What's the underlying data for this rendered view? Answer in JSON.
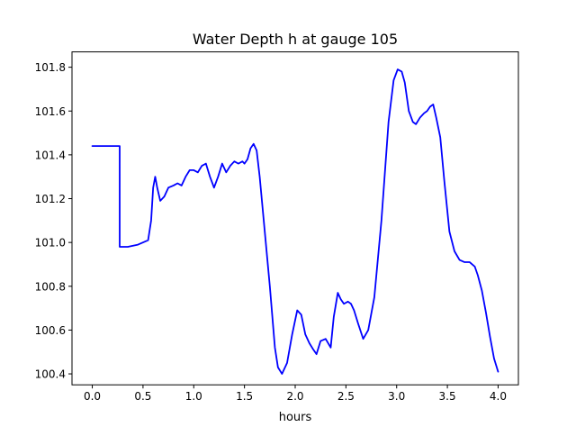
{
  "chart_data": {
    "type": "line",
    "title": "Water Depth h at gauge 105",
    "xlabel": "hours",
    "ylabel": "",
    "xlim": [
      -0.2,
      4.2
    ],
    "ylim": [
      100.35,
      101.87
    ],
    "xticks": [
      0.0,
      0.5,
      1.0,
      1.5,
      2.0,
      2.5,
      3.0,
      3.5,
      4.0
    ],
    "xtick_labels": [
      "0.0",
      "0.5",
      "1.0",
      "1.5",
      "2.0",
      "2.5",
      "3.0",
      "3.5",
      "4.0"
    ],
    "yticks": [
      100.4,
      100.6,
      100.8,
      101.0,
      101.2,
      101.4,
      101.6,
      101.8
    ],
    "ytick_labels": [
      "100.4",
      "100.6",
      "100.8",
      "101.0",
      "101.2",
      "101.4",
      "101.6",
      "101.8"
    ],
    "grid": false,
    "series": [
      {
        "color": "#0000ff",
        "x": [
          0.0,
          0.27,
          0.27,
          0.28,
          0.35,
          0.45,
          0.55,
          0.58,
          0.6,
          0.62,
          0.64,
          0.67,
          0.71,
          0.75,
          0.8,
          0.84,
          0.88,
          0.92,
          0.96,
          1.0,
          1.04,
          1.08,
          1.12,
          1.16,
          1.2,
          1.24,
          1.28,
          1.32,
          1.36,
          1.4,
          1.44,
          1.48,
          1.5,
          1.53,
          1.56,
          1.59,
          1.62,
          1.65,
          1.7,
          1.75,
          1.8,
          1.83,
          1.87,
          1.92,
          1.97,
          2.02,
          2.06,
          2.1,
          2.14,
          2.18,
          2.21,
          2.25,
          2.3,
          2.35,
          2.38,
          2.42,
          2.45,
          2.48,
          2.52,
          2.55,
          2.58,
          2.62,
          2.67,
          2.72,
          2.78,
          2.85,
          2.92,
          2.97,
          3.01,
          3.05,
          3.08,
          3.12,
          3.16,
          3.19,
          3.23,
          3.27,
          3.3,
          3.33,
          3.36,
          3.39,
          3.43,
          3.47,
          3.52,
          3.57,
          3.62,
          3.67,
          3.72,
          3.77,
          3.8,
          3.84,
          3.88,
          3.92,
          3.96,
          4.0
        ],
        "y": [
          101.44,
          101.44,
          100.98,
          100.98,
          100.98,
          100.99,
          101.01,
          101.1,
          101.25,
          101.3,
          101.25,
          101.19,
          101.21,
          101.25,
          101.26,
          101.27,
          101.26,
          101.3,
          101.33,
          101.33,
          101.32,
          101.35,
          101.36,
          101.3,
          101.25,
          101.3,
          101.36,
          101.32,
          101.35,
          101.37,
          101.36,
          101.37,
          101.36,
          101.38,
          101.43,
          101.45,
          101.42,
          101.3,
          101.05,
          100.8,
          100.52,
          100.43,
          100.4,
          100.45,
          100.58,
          100.69,
          100.67,
          100.58,
          100.54,
          100.51,
          100.49,
          100.55,
          100.56,
          100.52,
          100.66,
          100.77,
          100.74,
          100.72,
          100.73,
          100.72,
          100.69,
          100.63,
          100.56,
          100.6,
          100.75,
          101.1,
          101.55,
          101.74,
          101.79,
          101.78,
          101.73,
          101.6,
          101.55,
          101.54,
          101.57,
          101.59,
          101.6,
          101.62,
          101.63,
          101.57,
          101.48,
          101.28,
          101.05,
          100.96,
          100.92,
          100.91,
          100.91,
          100.89,
          100.85,
          100.78,
          100.68,
          100.57,
          100.47,
          100.41
        ]
      }
    ]
  }
}
